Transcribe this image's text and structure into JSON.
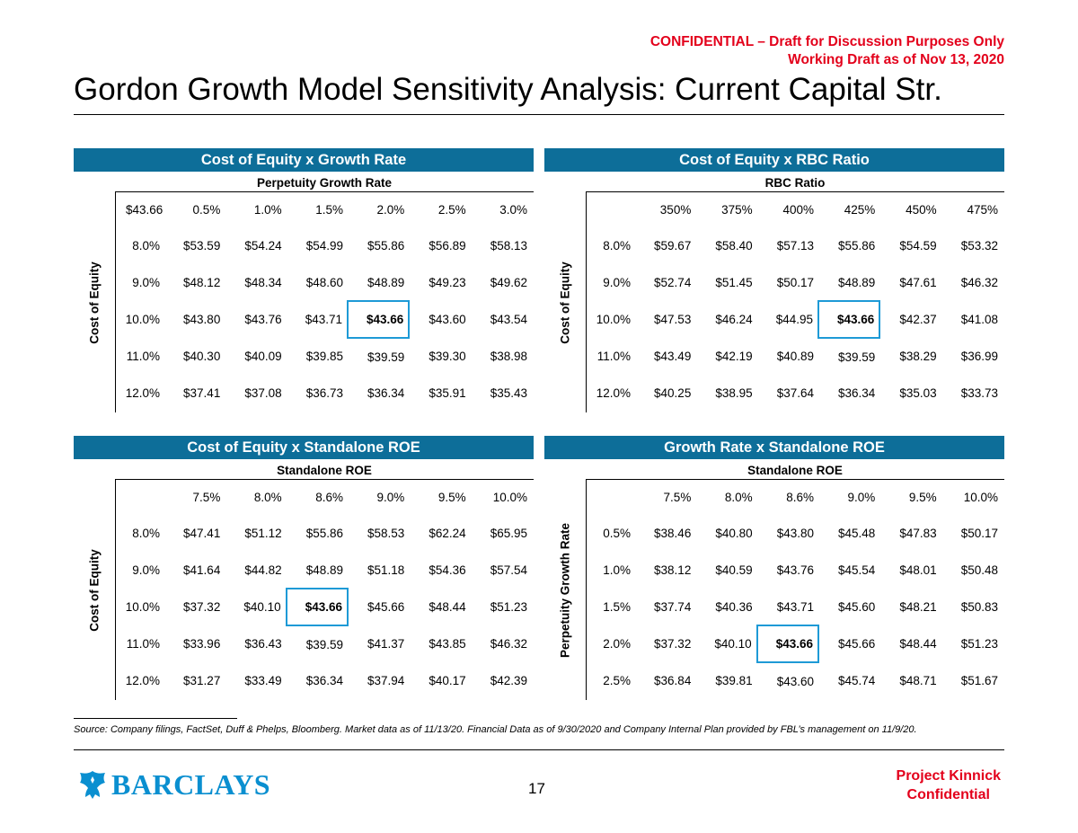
{
  "confidential": {
    "line1": "CONFIDENTIAL – Draft for Discussion Purposes Only",
    "line2": "Working Draft as of Nov 13, 2020"
  },
  "title": "Gordon Growth Model Sensitivity Analysis: Current Capital Str.",
  "colors": {
    "header_blue": "#0d6e99",
    "highlight": "#1e9ad6",
    "red": "#e3001b",
    "brand_blue": "#0a8fd0"
  },
  "panels": [
    {
      "title": "Cost of Equity x Growth Rate",
      "subtitle": "Perpetuity Growth Rate",
      "axis_label": "Cost of Equity",
      "corner": "$43.66",
      "col_headers": [
        "0.5%",
        "1.0%",
        "1.5%",
        "2.0%",
        "2.5%",
        "3.0%"
      ],
      "rows": [
        {
          "label": "8.0%",
          "values": [
            "$53.59",
            "$54.24",
            "$54.99",
            "$55.86",
            "$56.89",
            "$58.13"
          ]
        },
        {
          "label": "9.0%",
          "values": [
            "$48.12",
            "$48.34",
            "$48.60",
            "$48.89",
            "$49.23",
            "$49.62"
          ]
        },
        {
          "label": "10.0%",
          "values": [
            "$43.80",
            "$43.76",
            "$43.71",
            "$43.66",
            "$43.60",
            "$43.54"
          ]
        },
        {
          "label": "11.0%",
          "values": [
            "$40.30",
            "$40.09",
            "$39.85",
            "$39.59",
            "$39.30",
            "$38.98"
          ]
        },
        {
          "label": "12.0%",
          "values": [
            "$37.41",
            "$37.08",
            "$36.73",
            "$36.34",
            "$35.91",
            "$35.43"
          ]
        }
      ],
      "highlight": [
        2,
        3
      ]
    },
    {
      "title": "Cost of Equity x RBC Ratio",
      "subtitle": "RBC Ratio",
      "axis_label": "Cost of Equity",
      "corner": "",
      "col_headers": [
        "350%",
        "375%",
        "400%",
        "425%",
        "450%",
        "475%"
      ],
      "rows": [
        {
          "label": "8.0%",
          "values": [
            "$59.67",
            "$58.40",
            "$57.13",
            "$55.86",
            "$54.59",
            "$53.32"
          ]
        },
        {
          "label": "9.0%",
          "values": [
            "$52.74",
            "$51.45",
            "$50.17",
            "$48.89",
            "$47.61",
            "$46.32"
          ]
        },
        {
          "label": "10.0%",
          "values": [
            "$47.53",
            "$46.24",
            "$44.95",
            "$43.66",
            "$42.37",
            "$41.08"
          ]
        },
        {
          "label": "11.0%",
          "values": [
            "$43.49",
            "$42.19",
            "$40.89",
            "$39.59",
            "$38.29",
            "$36.99"
          ]
        },
        {
          "label": "12.0%",
          "values": [
            "$40.25",
            "$38.95",
            "$37.64",
            "$36.34",
            "$35.03",
            "$33.73"
          ]
        }
      ],
      "highlight": [
        2,
        3
      ]
    },
    {
      "title": "Cost of Equity x Standalone ROE",
      "subtitle": "Standalone ROE",
      "axis_label": "Cost of Equity",
      "corner": "",
      "col_headers": [
        "7.5%",
        "8.0%",
        "8.6%",
        "9.0%",
        "9.5%",
        "10.0%"
      ],
      "rows": [
        {
          "label": "8.0%",
          "values": [
            "$47.41",
            "$51.12",
            "$55.86",
            "$58.53",
            "$62.24",
            "$65.95"
          ]
        },
        {
          "label": "9.0%",
          "values": [
            "$41.64",
            "$44.82",
            "$48.89",
            "$51.18",
            "$54.36",
            "$57.54"
          ]
        },
        {
          "label": "10.0%",
          "values": [
            "$37.32",
            "$40.10",
            "$43.66",
            "$45.66",
            "$48.44",
            "$51.23"
          ]
        },
        {
          "label": "11.0%",
          "values": [
            "$33.96",
            "$36.43",
            "$39.59",
            "$41.37",
            "$43.85",
            "$46.32"
          ]
        },
        {
          "label": "12.0%",
          "values": [
            "$31.27",
            "$33.49",
            "$36.34",
            "$37.94",
            "$40.17",
            "$42.39"
          ]
        }
      ],
      "highlight": [
        2,
        2
      ]
    },
    {
      "title": "Growth Rate x Standalone ROE",
      "subtitle": "Standalone ROE",
      "axis_label": "Perpetuity Growth Rate",
      "corner": "",
      "col_headers": [
        "7.5%",
        "8.0%",
        "8.6%",
        "9.0%",
        "9.5%",
        "10.0%"
      ],
      "rows": [
        {
          "label": "0.5%",
          "values": [
            "$38.46",
            "$40.80",
            "$43.80",
            "$45.48",
            "$47.83",
            "$50.17"
          ]
        },
        {
          "label": "1.0%",
          "values": [
            "$38.12",
            "$40.59",
            "$43.76",
            "$45.54",
            "$48.01",
            "$50.48"
          ]
        },
        {
          "label": "1.5%",
          "values": [
            "$37.74",
            "$40.36",
            "$43.71",
            "$45.60",
            "$48.21",
            "$50.83"
          ]
        },
        {
          "label": "2.0%",
          "values": [
            "$37.32",
            "$40.10",
            "$43.66",
            "$45.66",
            "$48.44",
            "$51.23"
          ]
        },
        {
          "label": "2.5%",
          "values": [
            "$36.84",
            "$39.81",
            "$43.60",
            "$45.74",
            "$48.71",
            "$51.67"
          ]
        }
      ],
      "highlight": [
        3,
        2
      ]
    }
  ],
  "source": "Source: Company filings, FactSet, Duff & Phelps, Bloomberg. Market data as of 11/13/20. Financial Data as of 9/30/2020 and Company Internal Plan provided by FBL’s management on 11/9/20.",
  "footer": {
    "brand": "BARCLAYS",
    "logo_icon": "eagle-icon",
    "page_number": "17",
    "project_line1": "Project Kinnick",
    "project_line2": "Confidential"
  }
}
